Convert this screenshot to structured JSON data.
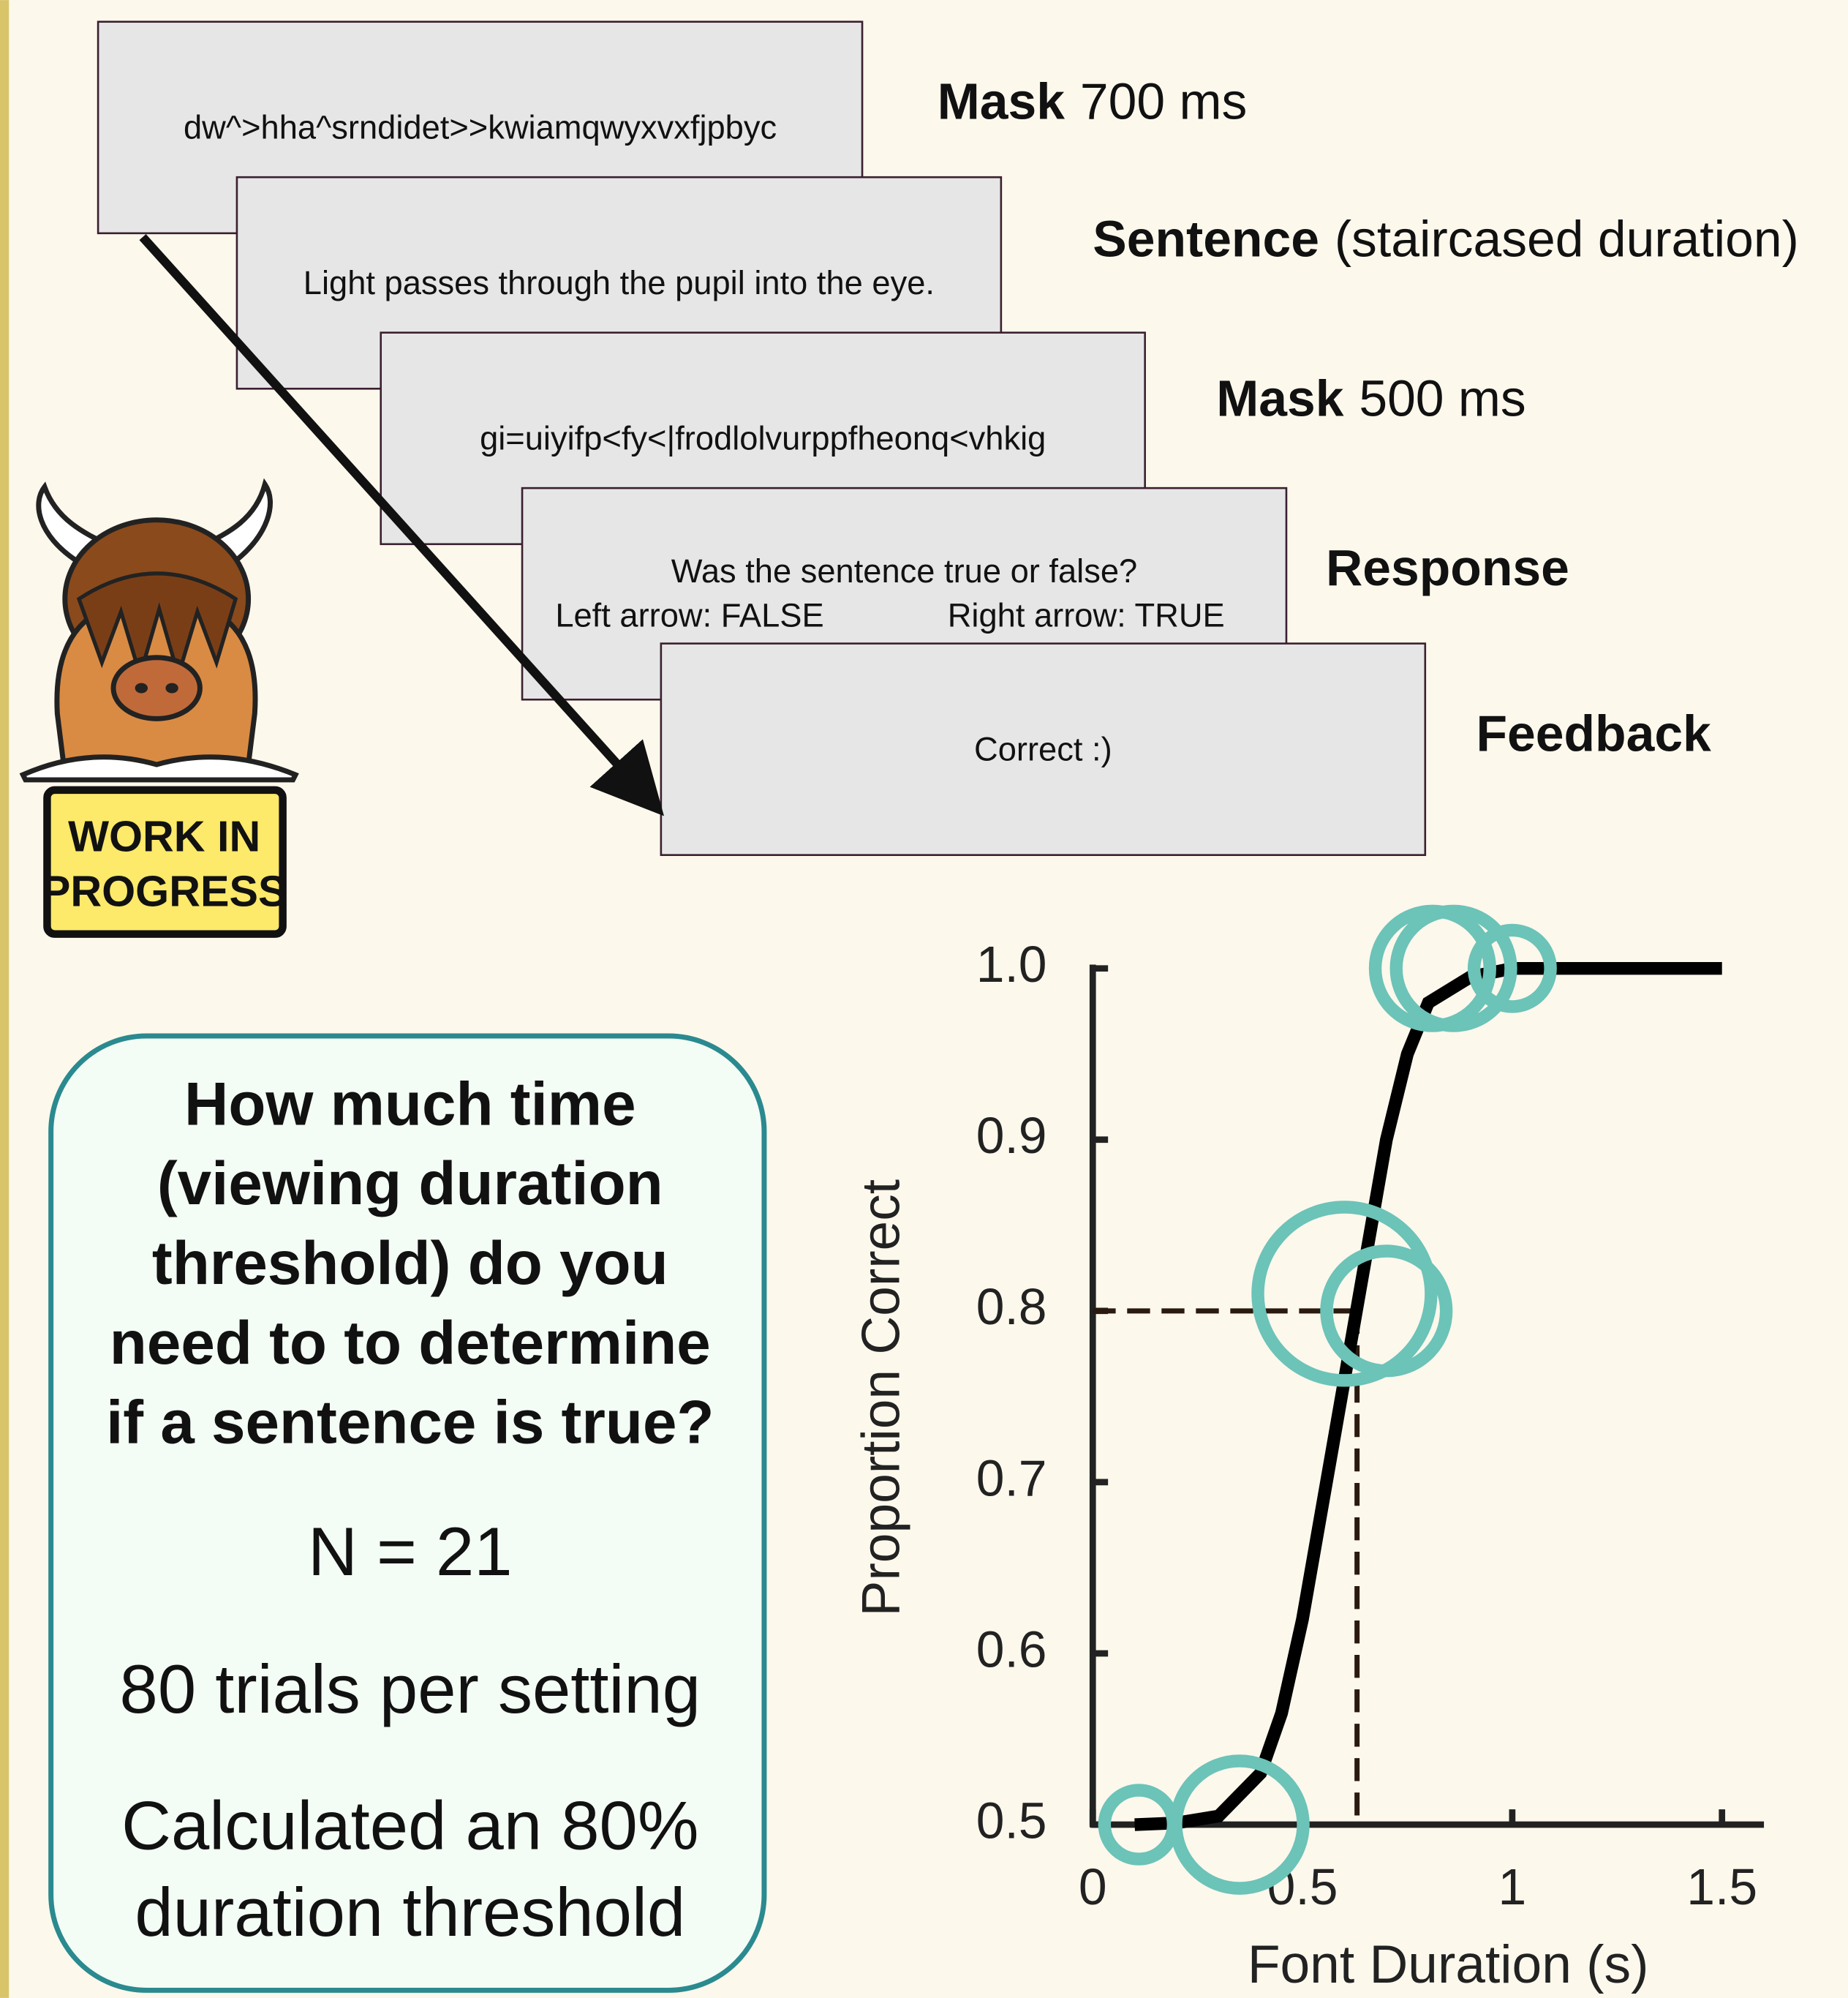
{
  "sequence": [
    {
      "screen": [
        "dw^>hha^srndidet>>kwiamqwyxvxfjpbyc"
      ],
      "label": "Mask",
      "detail": "700 ms"
    },
    {
      "screen": [
        "Light passes through the pupil into the eye."
      ],
      "label": "Sentence",
      "detail": "(staircased  duration)"
    },
    {
      "screen": [
        "gi=uiyifp<fy<|frodlolvurppfheonq<vhkig"
      ],
      "label": "Mask",
      "detail": "500 ms"
    },
    {
      "screen": [
        "Was the sentence true or false?",
        "Left arrow: FALSE",
        "Right arrow: TRUE"
      ],
      "label": "Response"
    },
    {
      "screen": [
        "Correct :)"
      ],
      "label": "Feedback"
    }
  ],
  "mascot_sign": [
    "WORK IN",
    "PROGRESS"
  ],
  "callout": {
    "question": [
      "How much time",
      "(viewing duration",
      "threshold) do you",
      "need to to determine",
      "if a sentence is true?"
    ],
    "notes": [
      "N = 21",
      "80 trials per setting",
      "Calculated an 80%",
      "duration threshold"
    ]
  },
  "chart_data": {
    "type": "bubble",
    "x_label": "Font Duration (s)",
    "y_label": "Proportion Correct",
    "x": [
      0.11,
      0.35,
      0.6,
      0.7,
      0.81,
      0.86,
      1.0
    ],
    "values": [
      0.5,
      0.5,
      0.81,
      0.8,
      1.0,
      1.0,
      1.0
    ],
    "sizes": [
      27,
      50,
      68,
      47,
      45,
      45,
      30
    ],
    "color": "#6cc3b8",
    "curve_x": [
      0.1,
      0.2,
      0.3,
      0.4,
      0.45,
      0.5,
      0.55,
      0.6,
      0.65,
      0.7,
      0.75,
      0.8,
      0.9,
      1.0,
      1.2,
      1.5
    ],
    "curve_values": [
      0.5,
      0.501,
      0.505,
      0.53,
      0.565,
      0.62,
      0.69,
      0.76,
      0.83,
      0.9,
      0.95,
      0.98,
      0.995,
      1.0,
      1.0,
      1.0
    ],
    "curve_color": "#000000",
    "threshold_x": 0.63,
    "threshold_y": 0.8,
    "xlim": [
      0,
      1.6
    ],
    "ylim": [
      0.5,
      1.0
    ],
    "xticks": [
      0,
      0.5,
      1,
      1.5
    ],
    "yticks": [
      0.5,
      0.6,
      0.7,
      0.8,
      0.9,
      {
        "value": 1,
        "label": "1.0"
      }
    ]
  }
}
